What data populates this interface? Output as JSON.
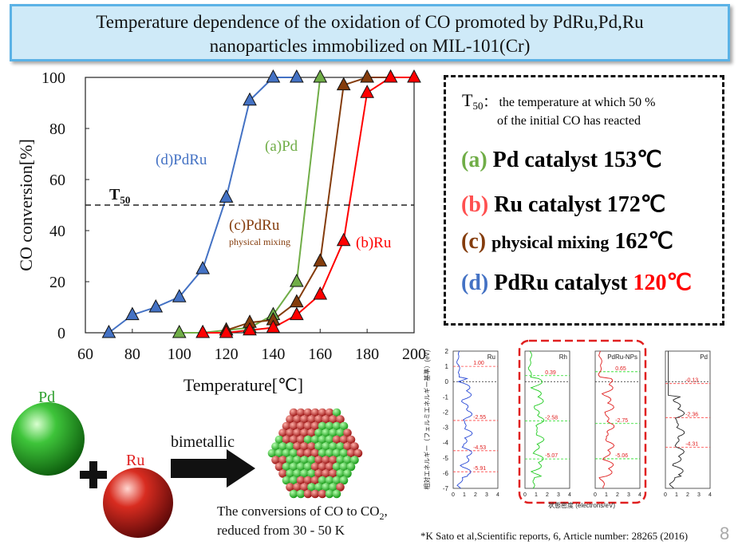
{
  "title": {
    "line1": "Temperature dependence of the oxidation of CO promoted by PdRu,Pd,Ru",
    "line2": "nanoparticles immobilized on MIL-101(Cr)"
  },
  "chart_data": {
    "type": "line",
    "xlabel": "Temperature[℃]",
    "ylabel": "CO conversion[%]",
    "xlim": [
      60,
      200
    ],
    "ylim": [
      0,
      100
    ],
    "xticks": [
      "60",
      "80",
      "100",
      "120",
      "140",
      "160",
      "180",
      "200"
    ],
    "yticks": [
      "0",
      "20",
      "40",
      "60",
      "80",
      "100"
    ],
    "marker": "triangle",
    "grid": false,
    "t50_line": {
      "y": 50,
      "label": "T",
      "sub": "50"
    },
    "series": [
      {
        "name": "(d)PdRu",
        "color": "#4472c4",
        "x": [
          70,
          80,
          90,
          100,
          110,
          120,
          130,
          140,
          150
        ],
        "y": [
          0,
          7,
          10,
          14,
          25,
          53,
          91,
          100,
          100
        ]
      },
      {
        "name": "(a)Pd",
        "color": "#70ad47",
        "x": [
          100,
          110,
          120,
          130,
          140,
          150,
          160
        ],
        "y": [
          0,
          0,
          1,
          2,
          7,
          20,
          100
        ]
      },
      {
        "name": "(c)PdRu",
        "sub": "physical mixing",
        "color": "#843c0c",
        "x": [
          120,
          130,
          140,
          150,
          160,
          170,
          180,
          190
        ],
        "y": [
          1,
          4,
          5,
          12,
          28,
          97,
          100,
          100
        ]
      },
      {
        "name": "(b)Ru",
        "color": "#ff0000",
        "x": [
          110,
          120,
          130,
          140,
          150,
          160,
          170,
          180,
          190,
          200
        ],
        "y": [
          0,
          0,
          1,
          2,
          7,
          15,
          36,
          94,
          100,
          100
        ]
      }
    ]
  },
  "legend": {
    "t50_sym": "T",
    "t50_sub": "50",
    "t50_colon": "：",
    "t50_line1": "the temperature at which 50 %",
    "t50_line2": "of the initial CO has reacted",
    "items": [
      {
        "letter": "(a)",
        "text": "Pd catalyst 153℃",
        "color": "#70ad47"
      },
      {
        "letter": "(b)",
        "text": "Ru catalyst 172℃",
        "color": "#ff5050"
      },
      {
        "letter": "(c)",
        "text_small": "physical mixing",
        "text": "162℃",
        "color": "#843c0c"
      },
      {
        "letter": "(d)",
        "text": "PdRu catalyst",
        "value": "120℃",
        "color": "#4472c4",
        "value_color": "#ff0000"
      }
    ]
  },
  "illustration": {
    "pd_label": "Pd",
    "ru_label": "Ru",
    "arrow_label": "bimetallic",
    "caption1": "The conversions of CO to CO",
    "caption1_sub": "2",
    "caption1_end": ",",
    "caption2": "reduced from 30 - 50 K"
  },
  "dos_panels": {
    "ylabel": "相対エネルギー（フェルミエネルギー基準）(eV)",
    "xlabel": "状態密度 (electrons/eV)",
    "yticks": [
      "2",
      "1",
      "0",
      "-1",
      "-2",
      "-3",
      "-4",
      "-5",
      "-6",
      "-7"
    ],
    "xticks": [
      "0",
      "1",
      "2",
      "3",
      "4"
    ],
    "panels": [
      {
        "name": "Ru",
        "color": "#2b4bd6",
        "labels": [
          "1.00",
          "-2.55",
          "-4.53",
          "-5.91"
        ]
      },
      {
        "name": "Rh",
        "color": "#22cc22",
        "labels": [
          "0.39",
          "-2.58",
          "-5.07"
        ]
      },
      {
        "name": "PdRu-NPs",
        "color": "#e02020",
        "labels": [
          "0.65",
          "-2.75",
          "-5.06"
        ]
      },
      {
        "name": "Pd",
        "color": "#222222",
        "labels": [
          "-0.13",
          "-2.36",
          "-4.31"
        ]
      }
    ]
  },
  "footer": "*K Sato  et al,Scientific reports, 6, Article number: 28265 (2016)",
  "page_number": "8"
}
